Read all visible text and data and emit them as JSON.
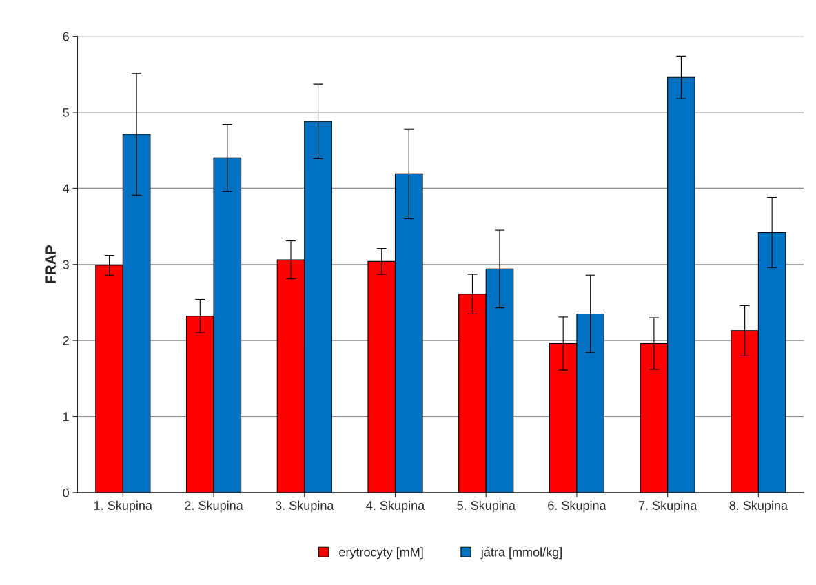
{
  "chart_data": {
    "type": "bar",
    "ylabel": "FRAP",
    "categories": [
      "1. Skupina",
      "2. Skupina",
      "3. Skupina",
      "4. Skupina",
      "5. Skupina",
      "6. Skupina",
      "7. Skupina",
      "8. Skupina"
    ],
    "series": [
      {
        "name": "erytrocyty [mM]",
        "color": "#ff0000",
        "values": [
          2.99,
          2.32,
          3.06,
          3.04,
          2.61,
          1.96,
          1.96,
          2.13
        ],
        "errors": [
          0.13,
          0.22,
          0.25,
          0.17,
          0.26,
          0.35,
          0.34,
          0.33
        ]
      },
      {
        "name": "játra [mmol/kg]",
        "color": "#0070c0",
        "values": [
          4.71,
          4.4,
          4.88,
          4.19,
          2.94,
          2.35,
          5.46,
          3.42
        ],
        "errors": [
          0.8,
          0.44,
          0.49,
          0.59,
          0.51,
          0.51,
          0.28,
          0.46
        ]
      }
    ],
    "ylim": [
      0,
      6
    ],
    "yticks": [
      0,
      1,
      2,
      3,
      4,
      5,
      6
    ],
    "grid": "y",
    "legend": "bottom"
  }
}
